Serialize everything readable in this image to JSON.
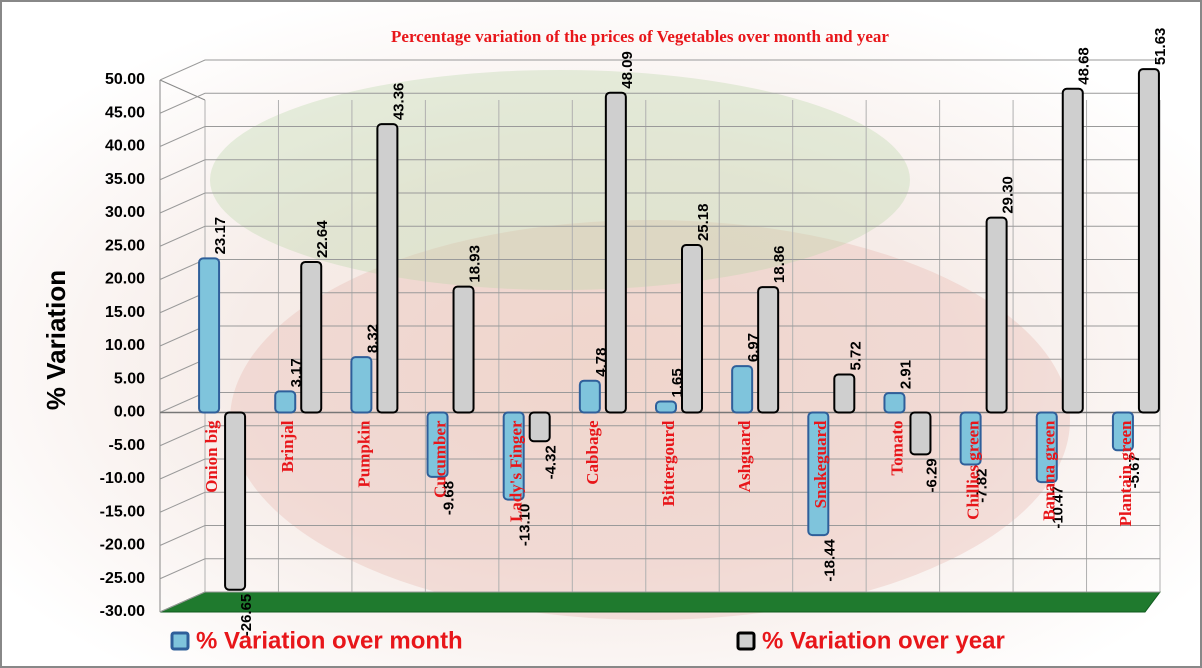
{
  "chart_data": {
    "type": "bar",
    "title": "Percentage variation of the prices of Vegetables over month and year",
    "y_label": "% Variation",
    "categories": [
      "Onion big",
      "Brinjal",
      "Pumpkin",
      "Cucumber",
      "Lady's Finger",
      "Cabbage",
      "Bittergourd",
      "Ashguard",
      "Snakeguard",
      "Tomato",
      "Chillies green",
      "Banana green",
      "Plantain green"
    ],
    "series": [
      {
        "name": "% Variation over month",
        "color": "#7fc4dc",
        "values": [
          23.17,
          3.17,
          8.32,
          -9.68,
          -13.1,
          4.78,
          1.65,
          6.97,
          -18.44,
          2.91,
          -7.82,
          -10.47,
          -5.67
        ],
        "value_labels": [
          "23.17",
          "3.17",
          "8.32",
          "-9.68",
          "-13.10",
          "4.78",
          "1.65",
          "6.97",
          "-18.44",
          "2.91",
          "-7.82",
          "-10.47",
          "-5.67"
        ]
      },
      {
        "name": "% Variation over year",
        "color": "#cfcfcf",
        "values": [
          -26.65,
          22.64,
          43.36,
          18.93,
          -4.32,
          48.09,
          25.18,
          18.86,
          5.72,
          -6.29,
          29.3,
          48.68,
          51.63
        ],
        "value_labels": [
          "-26.65",
          "22.64",
          "43.36",
          "18.93",
          "-4.32",
          "48.09",
          "25.18",
          "18.86",
          "5.72",
          "-6.29",
          "29.30",
          "48.68",
          "51.63"
        ]
      }
    ],
    "ylim": [
      -30,
      50
    ],
    "yticks": [
      {
        "value": -30,
        "label": "-30.00"
      },
      {
        "value": -25,
        "label": "-25.00"
      },
      {
        "value": -20,
        "label": "-20.00"
      },
      {
        "value": -15,
        "label": "-15.00"
      },
      {
        "value": -10,
        "label": "-10.00"
      },
      {
        "value": -5,
        "label": "-5.00"
      },
      {
        "value": 0,
        "label": "0.00"
      },
      {
        "value": 5,
        "label": "5.00"
      },
      {
        "value": 10,
        "label": "10.00"
      },
      {
        "value": 15,
        "label": "15.00"
      },
      {
        "value": 20,
        "label": "20.00"
      },
      {
        "value": 25,
        "label": "25.00"
      },
      {
        "value": 30,
        "label": "30.00"
      },
      {
        "value": 35,
        "label": "35.00"
      },
      {
        "value": 40,
        "label": "40.00"
      },
      {
        "value": 45,
        "label": "45.00"
      },
      {
        "value": 50,
        "label": "50.00"
      }
    ],
    "grid": true
  }
}
